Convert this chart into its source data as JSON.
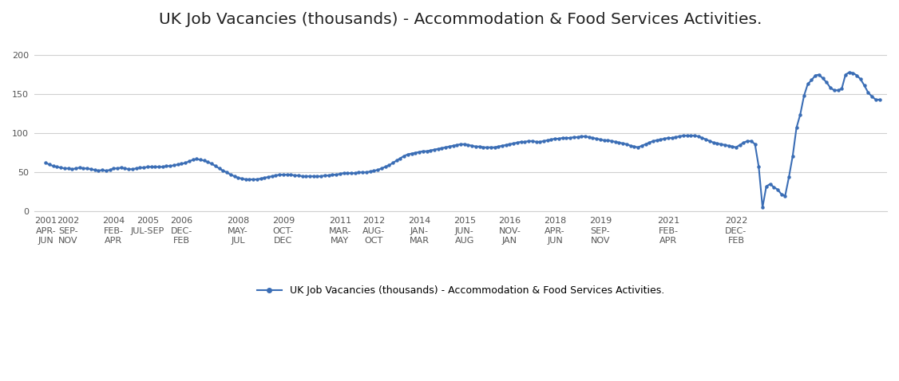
{
  "title": "UK Job Vacancies (thousands) - Accommodation & Food Services Activities.",
  "legend_label": "UK Job Vacancies (thousands) - Accommodation & Food Services Activities.",
  "line_color": "#3A6DB5",
  "marker": "o",
  "markersize": 2.2,
  "linewidth": 1.5,
  "ylim": [
    0,
    220
  ],
  "yticks": [
    0,
    50,
    100,
    150,
    200
  ],
  "background_color": "#ffffff",
  "grid_color": "#d0d0d0",
  "title_fontsize": 14.5,
  "tick_label_fontsize": 8,
  "x_labels": [
    "2001\nAPR-\nJUN",
    "2002\nSEP-\nNOV",
    "2004\nFEB-\nAPR",
    "2005\nJUL-SEP",
    "2006\nDEC-\nFEB",
    "2008\nMAY-\nJUL",
    "2009\nOCT-\nDEC",
    "2011\nMAR-\nMAY",
    "2012\nAUG-\nOCT",
    "2014\nJAN-\nMAR",
    "2015\nJUN-\nAUG",
    "2016\nNOV-\nJAN",
    "2018\nAPR-\nJUN",
    "2019\nSEP-\nNOV",
    "2021\nFEB-\nAPR",
    "2022\nDEC-\nFEB"
  ],
  "values": [
    62,
    60,
    58,
    57,
    56,
    55,
    55,
    54,
    55,
    56,
    55,
    55,
    54,
    53,
    52,
    53,
    52,
    53,
    55,
    55,
    56,
    55,
    54,
    54,
    55,
    56,
    56,
    57,
    57,
    57,
    57,
    57,
    58,
    58,
    59,
    60,
    61,
    62,
    64,
    66,
    67,
    66,
    65,
    63,
    61,
    58,
    55,
    52,
    50,
    47,
    45,
    43,
    42,
    41,
    41,
    41,
    41,
    42,
    43,
    44,
    45,
    46,
    47,
    47,
    47,
    47,
    46,
    46,
    45,
    45,
    45,
    45,
    45,
    45,
    46,
    46,
    47,
    47,
    48,
    49,
    49,
    49,
    49,
    50,
    50,
    50,
    51,
    52,
    53,
    55,
    57,
    59,
    62,
    65,
    68,
    71,
    73,
    74,
    75,
    76,
    77,
    77,
    78,
    79,
    80,
    81,
    82,
    83,
    84,
    85,
    86,
    86,
    85,
    84,
    83,
    83,
    82,
    82,
    82,
    82,
    83,
    84,
    85,
    86,
    87,
    88,
    89,
    89,
    90,
    90,
    89,
    89,
    90,
    91,
    92,
    93,
    93,
    94,
    94,
    94,
    95,
    95,
    96,
    96,
    95,
    94,
    93,
    92,
    91,
    91,
    90,
    89,
    88,
    87,
    86,
    84,
    83,
    82,
    84,
    86,
    88,
    90,
    91,
    92,
    93,
    94,
    94,
    95,
    96,
    97,
    97,
    97,
    97,
    96,
    94,
    92,
    90,
    88,
    87,
    86,
    85,
    84,
    83,
    82,
    85,
    88,
    90,
    90,
    86,
    57,
    5,
    32,
    35,
    31,
    28,
    22,
    20,
    44,
    71,
    107,
    124,
    148,
    163,
    168,
    174,
    175,
    170,
    165,
    158,
    155,
    155,
    157,
    175,
    178,
    177,
    174,
    169,
    161,
    152,
    147,
    143,
    143
  ],
  "tick_indices": [
    0,
    6,
    18,
    27,
    36,
    51,
    63,
    78,
    87,
    99,
    111,
    123,
    135,
    147,
    165,
    183
  ]
}
